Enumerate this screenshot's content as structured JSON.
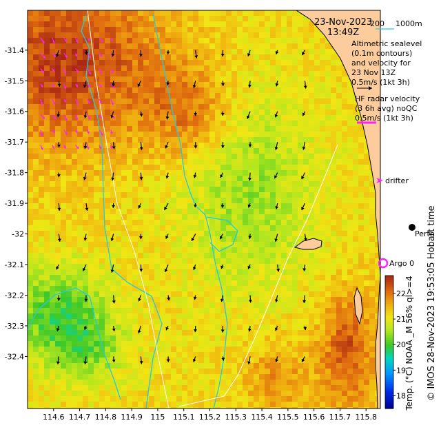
{
  "title": {
    "date": "23-Nov-2023",
    "time": "13:49Z"
  },
  "isobath_legend": {
    "label_200": "200",
    "label_1000": "1000m",
    "color_200": "#ffffff",
    "color_1000": "#22ccdd"
  },
  "altimetry_legend": {
    "lines": [
      "Altimetric sealevel",
      "(0.1m contours)",
      "and velocity for",
      "23 Nov 13Z",
      "0.5m/s (1kt 3h)"
    ]
  },
  "hf_radar_legend": {
    "lines": [
      "HF radar velocity",
      "(3 6h avg) noQC",
      "0.5m/s (1kt 3h)"
    ],
    "arrow_color": "#ff22ff"
  },
  "drifter_label": "drifter",
  "city_label": "Perth",
  "argo_label": "Argo 0",
  "argo_color": "#ff22ff",
  "x_axis": {
    "ticks": [
      "114.6",
      "114.7",
      "114.8",
      "114.9",
      "115",
      "115.1",
      "115.2",
      "115.3",
      "115.4",
      "115.5",
      "115.6",
      "115.7",
      "115.8"
    ],
    "range": [
      114.5,
      115.855
    ]
  },
  "y_axis": {
    "ticks": [
      "-31.4",
      "-31.5",
      "-31.6",
      "-31.7",
      "-31.8",
      "-31.9",
      "-32",
      "-32.1",
      "-32.2",
      "-32.3",
      "-32.4"
    ],
    "range": [
      -31.27,
      -32.57
    ]
  },
  "colorbar": {
    "ticks": [
      "18",
      "19",
      "20",
      "21",
      "22"
    ],
    "range": [
      17.5,
      22.7
    ],
    "label": "Temp. (°C) NOAA _M 56% ql>=4"
  },
  "credit": "© IMOS 28-Nov-2023 19:53:05 Hobart time",
  "colors": {
    "land": "#fdcc9c",
    "sst_warm": "#c8551a",
    "sst_mid": "#ebb011",
    "sst_cool": "#c8e61c",
    "sst_cold": "#3fc727"
  }
}
